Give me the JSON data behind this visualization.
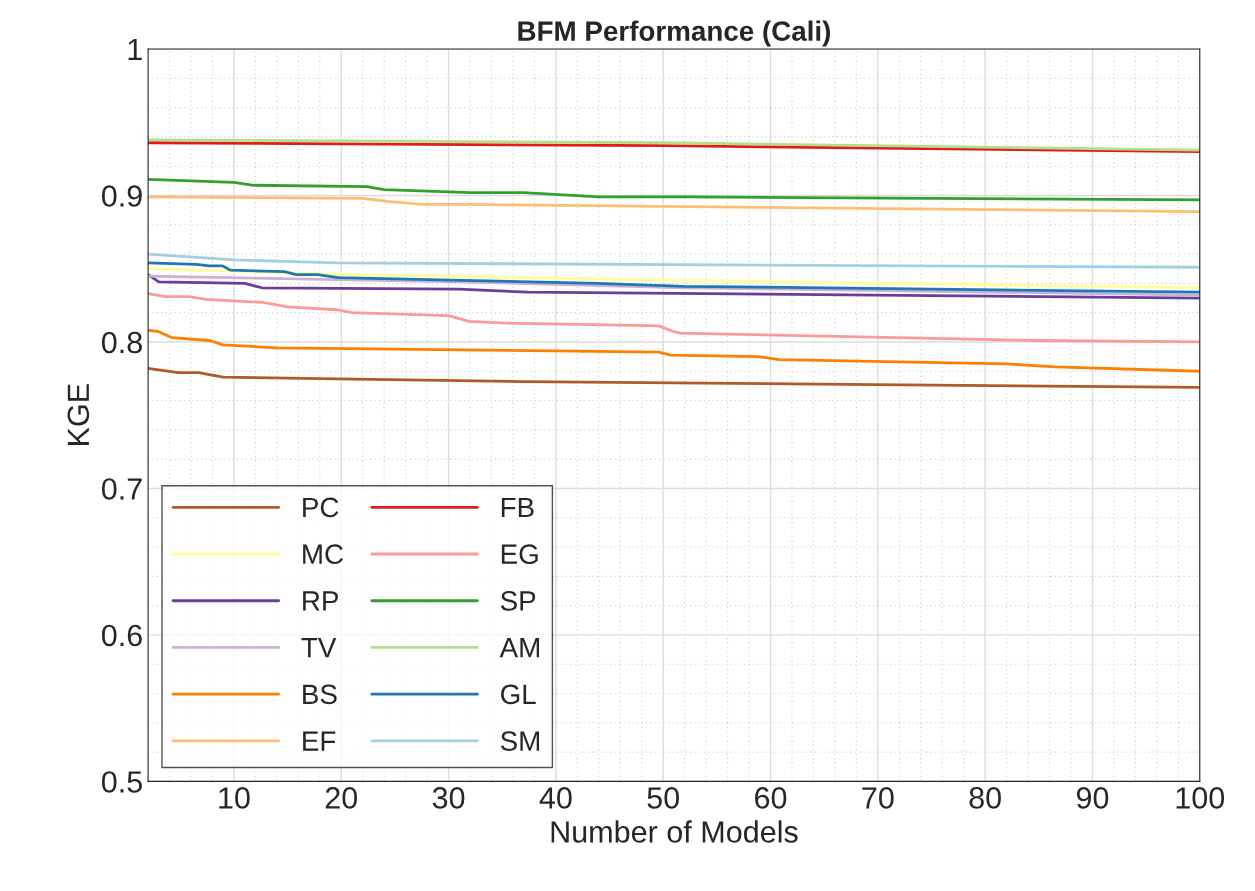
{
  "chart_data": {
    "type": "line",
    "title": "BFM Performance (Cali)",
    "xlabel": "Number of Models",
    "ylabel": "KGE",
    "xlim": [
      2,
      100
    ],
    "ylim": [
      0.5,
      1
    ],
    "xticks": [
      10,
      20,
      30,
      40,
      50,
      60,
      70,
      80,
      90,
      100
    ],
    "yticks": [
      0.5,
      0.6,
      0.7,
      0.8,
      0.9,
      1
    ],
    "grid": true,
    "legend": "bottom left",
    "line_style": "solid",
    "marker": "none",
    "series": [
      {
        "name": "PC",
        "color": "#b15928",
        "x": [
          2,
          4.8,
          6.7,
          9,
          18,
          37,
          100
        ],
        "values": [
          0.782,
          0.779,
          0.779,
          0.776,
          0.775,
          0.773,
          0.769
        ]
      },
      {
        "name": "MC",
        "color": "#ffff99",
        "x": [
          2,
          20.8,
          52,
          100
        ],
        "values": [
          0.85,
          0.846,
          0.842,
          0.837
        ]
      },
      {
        "name": "RP",
        "color": "#6a3d9a",
        "x": [
          2,
          3,
          11,
          12.6,
          31,
          37.4,
          100
        ],
        "values": [
          0.846,
          0.841,
          0.84,
          0.837,
          0.836,
          0.834,
          0.83
        ]
      },
      {
        "name": "TV",
        "color": "#cab2d6",
        "x": [
          2,
          31,
          52,
          100
        ],
        "values": [
          0.845,
          0.841,
          0.837,
          0.832
        ]
      },
      {
        "name": "BS",
        "color": "#ff7f00",
        "x": [
          2,
          3,
          4.2,
          7.7,
          9,
          14,
          27,
          49.6,
          50.7,
          58.8,
          60.8,
          82,
          86.5,
          100
        ],
        "values": [
          0.808,
          0.807,
          0.803,
          0.801,
          0.798,
          0.796,
          0.795,
          0.793,
          0.791,
          0.79,
          0.788,
          0.785,
          0.783,
          0.78
        ]
      },
      {
        "name": "EF",
        "color": "#fdbf6f",
        "x": [
          2,
          22,
          24.3,
          27.5,
          30.6,
          100
        ],
        "values": [
          0.899,
          0.898,
          0.896,
          0.894,
          0.894,
          0.889
        ]
      },
      {
        "name": "FB",
        "color": "#e31a1c",
        "x": [
          2,
          50,
          100
        ],
        "values": [
          0.936,
          0.934,
          0.93
        ]
      },
      {
        "name": "EG",
        "color": "#fb9a99",
        "x": [
          2,
          3.6,
          5.8,
          7.4,
          12.7,
          15,
          19.6,
          21,
          30,
          31.9,
          35,
          49.6,
          51,
          51.6,
          84.8,
          100
        ],
        "values": [
          0.833,
          0.831,
          0.831,
          0.829,
          0.827,
          0.824,
          0.822,
          0.82,
          0.818,
          0.814,
          0.813,
          0.811,
          0.807,
          0.806,
          0.801,
          0.8
        ]
      },
      {
        "name": "SP",
        "color": "#33a02c",
        "x": [
          2,
          10,
          11.7,
          22.4,
          24,
          28,
          32,
          37,
          44,
          52,
          100
        ],
        "values": [
          0.911,
          0.909,
          0.907,
          0.906,
          0.904,
          0.903,
          0.902,
          0.902,
          0.899,
          0.899,
          0.897
        ]
      },
      {
        "name": "AM",
        "color": "#b2df8a",
        "x": [
          2,
          50,
          100
        ],
        "values": [
          0.938,
          0.936,
          0.931
        ]
      },
      {
        "name": "GL",
        "color": "#1f78b4",
        "x": [
          2,
          6.5,
          7.7,
          8.9,
          9.7,
          14.7,
          15.8,
          17.8,
          19.7,
          31.3,
          43.9,
          52,
          100
        ],
        "values": [
          0.854,
          0.853,
          0.852,
          0.852,
          0.849,
          0.848,
          0.846,
          0.846,
          0.844,
          0.842,
          0.84,
          0.838,
          0.834
        ]
      },
      {
        "name": "SM",
        "color": "#a6cee3",
        "x": [
          2,
          10,
          19.6,
          100
        ],
        "values": [
          0.86,
          0.856,
          0.854,
          0.851
        ]
      }
    ]
  }
}
